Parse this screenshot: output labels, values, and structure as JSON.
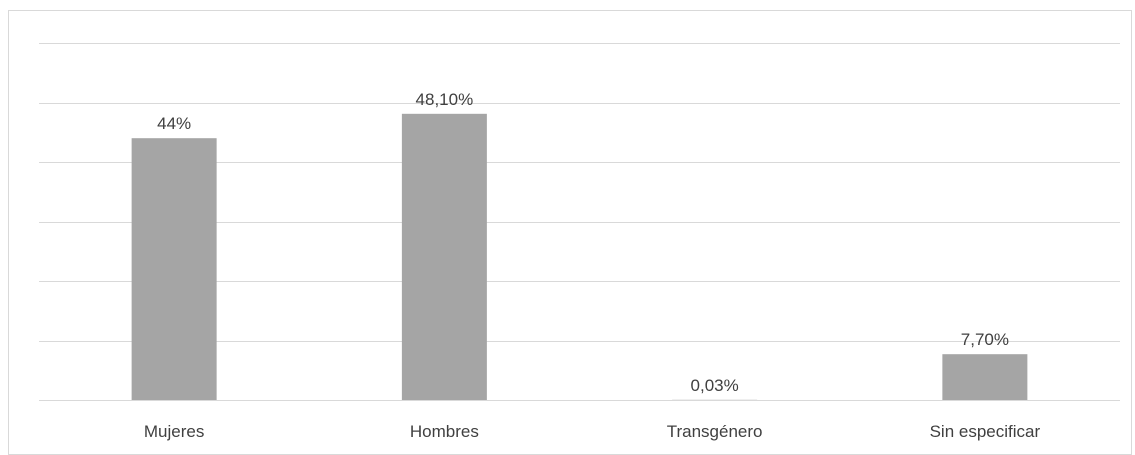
{
  "chart_data": {
    "type": "bar",
    "categories": [
      "Mujeres",
      "Hombres",
      "Transgénero",
      "Sin especificar"
    ],
    "values": [
      44,
      48.1,
      0.03,
      7.7
    ],
    "data_labels": [
      "44%",
      "48,10%",
      "0,03%",
      "7,70%"
    ],
    "ylim": [
      0,
      60
    ],
    "grid": true,
    "legend": "none",
    "colors": {
      "bar": "#a5a5a5",
      "grid": "#d9d9d9",
      "text": "#404040"
    }
  }
}
